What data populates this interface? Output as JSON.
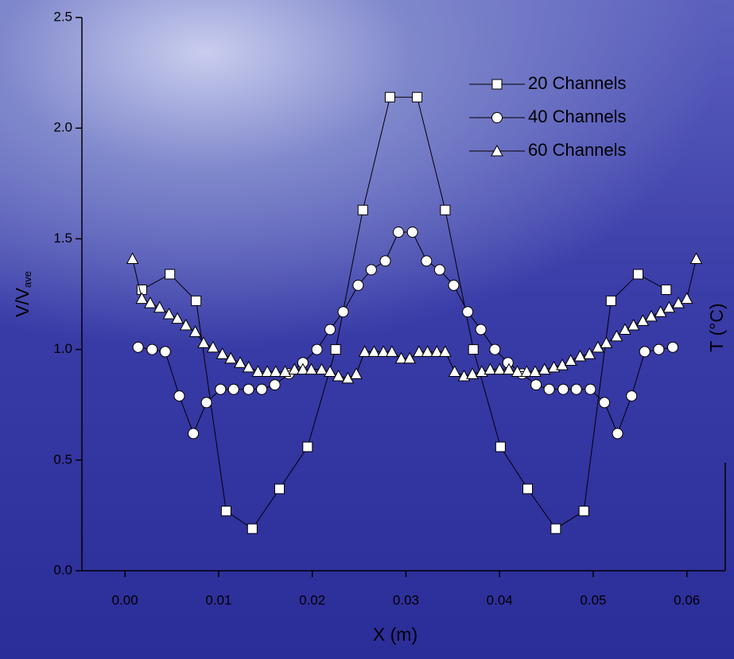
{
  "chart_data": {
    "type": "line",
    "xlabel": "X (m)",
    "ylabel": "V/V",
    "ylabel_subscript": "ave",
    "y2label": "T (°C)",
    "xlim": [
      -0.0046,
      0.0641
    ],
    "ylim": [
      0,
      2.5
    ],
    "xticks": [
      {
        "value": 0,
        "label": "0.00"
      },
      {
        "value": 0.01,
        "label": "0.01"
      },
      {
        "value": 0.02,
        "label": "0.02"
      },
      {
        "value": 0.03,
        "label": "0.03"
      },
      {
        "value": 0.04,
        "label": "0.04"
      },
      {
        "value": 0.05,
        "label": "0.05"
      },
      {
        "value": 0.06,
        "label": "0.06"
      }
    ],
    "yticks": [
      {
        "value": 0,
        "label": "0.0"
      },
      {
        "value": 0.5,
        "label": "0.5"
      },
      {
        "value": 1,
        "label": "1.0"
      },
      {
        "value": 1.5,
        "label": "1.5"
      },
      {
        "value": 2,
        "label": "2.0"
      },
      {
        "value": 2.5,
        "label": "2.5"
      }
    ],
    "legend": "upper right",
    "series": [
      {
        "name": "20 Channels",
        "marker": "square",
        "color": "#000000",
        "x": [
          0.0018,
          0.0048,
          0.0076,
          0.0108,
          0.0136,
          0.0165,
          0.0195,
          0.0225,
          0.0254,
          0.0283,
          0.0312,
          0.0342,
          0.0372,
          0.0401,
          0.043,
          0.046,
          0.049,
          0.0519,
          0.0548,
          0.0578
        ],
        "values": [
          1.27,
          1.34,
          1.22,
          0.27,
          0.19,
          0.37,
          0.56,
          1.0,
          1.63,
          2.14,
          2.14,
          1.63,
          1.0,
          0.56,
          0.37,
          0.19,
          0.27,
          1.22,
          1.34,
          1.27
        ]
      },
      {
        "name": "40 Channels",
        "marker": "circle",
        "color": "#000000",
        "x": [
          0.0014,
          0.0029,
          0.0043,
          0.0058,
          0.0073,
          0.0087,
          0.0102,
          0.0116,
          0.0132,
          0.0146,
          0.016,
          0.0175,
          0.019,
          0.0205,
          0.0219,
          0.0233,
          0.0249,
          0.0263,
          0.0278,
          0.0292,
          0.0307,
          0.0322,
          0.0336,
          0.0351,
          0.0366,
          0.038,
          0.0395,
          0.0409,
          0.0424,
          0.0439,
          0.0453,
          0.0468,
          0.0482,
          0.0497,
          0.0512,
          0.0526,
          0.0541,
          0.0555,
          0.057,
          0.0585
        ],
        "values": [
          1.01,
          1.0,
          0.99,
          0.79,
          0.62,
          0.76,
          0.82,
          0.82,
          0.82,
          0.82,
          0.84,
          0.89,
          0.94,
          1.0,
          1.09,
          1.17,
          1.29,
          1.36,
          1.4,
          1.53,
          1.53,
          1.4,
          1.36,
          1.29,
          1.17,
          1.09,
          1.0,
          0.94,
          0.89,
          0.84,
          0.82,
          0.82,
          0.82,
          0.82,
          0.76,
          0.62,
          0.79,
          0.99,
          1.0,
          1.01
        ]
      },
      {
        "name": "60 Channels",
        "marker": "triangle",
        "color": "#000000",
        "x": [
          0.0008,
          0.0018,
          0.0027,
          0.0037,
          0.0047,
          0.0056,
          0.0065,
          0.0075,
          0.0084,
          0.0094,
          0.0104,
          0.0113,
          0.0123,
          0.0132,
          0.0142,
          0.0152,
          0.0161,
          0.0171,
          0.0181,
          0.019,
          0.0199,
          0.021,
          0.0219,
          0.0228,
          0.0238,
          0.0247,
          0.0256,
          0.0266,
          0.0276,
          0.0285,
          0.0295,
          0.0304,
          0.0314,
          0.0323,
          0.0333,
          0.0342,
          0.0352,
          0.0362,
          0.0371,
          0.0381,
          0.039,
          0.04,
          0.041,
          0.0419,
          0.0429,
          0.0438,
          0.0448,
          0.0458,
          0.0467,
          0.0476,
          0.0486,
          0.0496,
          0.0505,
          0.0514,
          0.0525,
          0.0534,
          0.0543,
          0.0553,
          0.0562,
          0.0572,
          0.0581,
          0.0591,
          0.06,
          0.061
        ],
        "values": [
          1.41,
          1.23,
          1.21,
          1.19,
          1.16,
          1.14,
          1.11,
          1.08,
          1.03,
          1.01,
          0.98,
          0.96,
          0.94,
          0.92,
          0.9,
          0.9,
          0.9,
          0.9,
          0.91,
          0.91,
          0.91,
          0.91,
          0.9,
          0.88,
          0.87,
          0.89,
          0.99,
          0.99,
          0.99,
          0.99,
          0.96,
          0.96,
          0.99,
          0.99,
          0.99,
          0.99,
          0.9,
          0.88,
          0.89,
          0.9,
          0.91,
          0.91,
          0.91,
          0.9,
          0.9,
          0.9,
          0.91,
          0.92,
          0.93,
          0.95,
          0.97,
          0.98,
          1.01,
          1.03,
          1.06,
          1.09,
          1.11,
          1.13,
          1.15,
          1.17,
          1.19,
          1.21,
          1.23,
          1.41
        ]
      }
    ]
  }
}
